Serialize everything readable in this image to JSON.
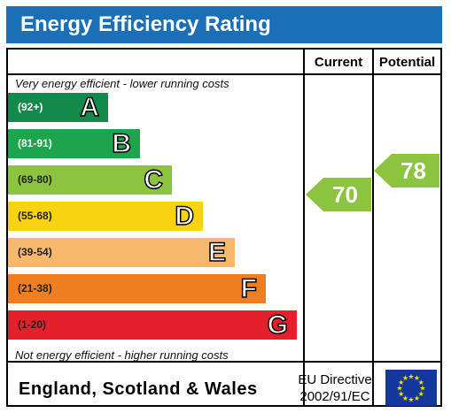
{
  "title": "Energy Efficiency Rating",
  "columns": {
    "current": "Current",
    "potential": "Potential"
  },
  "top_note": "Very energy efficient - lower running costs",
  "bottom_note": "Not energy efficient - higher running costs",
  "bands": [
    {
      "range": "(92+)",
      "letter": "A",
      "color": "#138a4a"
    },
    {
      "range": "(81-91)",
      "letter": "B",
      "color": "#1ea44c"
    },
    {
      "range": "(69-80)",
      "letter": "C",
      "color": "#8cc43f"
    },
    {
      "range": "(55-68)",
      "letter": "D",
      "color": "#f7d40f"
    },
    {
      "range": "(39-54)",
      "letter": "E",
      "color": "#f6b86c"
    },
    {
      "range": "(21-38)",
      "letter": "F",
      "color": "#ef7e22"
    },
    {
      "range": "(1-20)",
      "letter": "G",
      "color": "#e3202c"
    }
  ],
  "current_rating": {
    "value": "70",
    "color": "#8cc43f"
  },
  "potential_rating": {
    "value": "78",
    "color": "#8cc43f"
  },
  "footer": {
    "region": "England, Scotland & Wales",
    "directive_line1": "EU Directive",
    "directive_line2": "2002/91/EC"
  },
  "eu_flag": {
    "background": "#13379a",
    "stars": "#ffdd00",
    "icon": "eu-flag-icon"
  }
}
